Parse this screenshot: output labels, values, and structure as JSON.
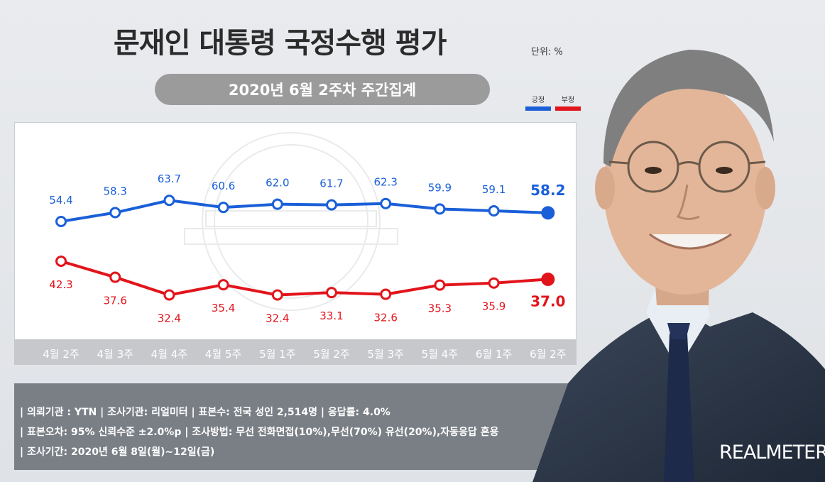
{
  "header": {
    "title": "문재인 대통령 국정수행 평가",
    "unit": "단위: %",
    "period": "2020년 6월 2주차 주간집계"
  },
  "legend": {
    "positive_label": "긍정",
    "negative_label": "부정",
    "positive_color": "#1a5fd8",
    "negative_color": "#e2141b"
  },
  "chart_data": {
    "type": "line",
    "categories": [
      "4월 2주",
      "4월 3주",
      "4월 4주",
      "4월 5주",
      "5월 1주",
      "5월 2주",
      "5월 3주",
      "5월 4주",
      "6월 1주",
      "6월 2주"
    ],
    "series": [
      {
        "name": "긍정",
        "color": "#1a5fd8",
        "values": [
          54.4,
          58.3,
          63.7,
          60.6,
          62.0,
          61.7,
          62.3,
          59.9,
          59.1,
          58.2
        ]
      },
      {
        "name": "부정",
        "color": "#e2141b",
        "values": [
          42.3,
          37.6,
          32.4,
          35.4,
          32.4,
          33.1,
          32.6,
          35.3,
          35.9,
          37.0
        ]
      }
    ],
    "value_labels": {
      "positive": [
        "54.4",
        "58.3",
        "63.7",
        "60.6",
        "62.0",
        "61.7",
        "62.3",
        "59.9",
        "59.1",
        "58.2"
      ],
      "negative": [
        "42.3",
        "37.6",
        "32.4",
        "35.4",
        "32.4",
        "33.1",
        "32.6",
        "35.3",
        "35.9",
        "37.0"
      ]
    },
    "grid": false
  },
  "info": {
    "line1": "| 의뢰기관 : YTN   |  조사기관: 리얼미터  |  표본수: 전국 성인 2,514명  |  응답률: 4.0%",
    "line2": "| 표본오차: 95% 신뢰수준 ±2.0%p  |  조사방법: 무선 전화면접(10%),무선(70%) 유선(20%),자동응답 혼용",
    "line3": "| 조사기간: 2020년 6월 8일(월)~12일(금)"
  },
  "brand": "REALMETER"
}
